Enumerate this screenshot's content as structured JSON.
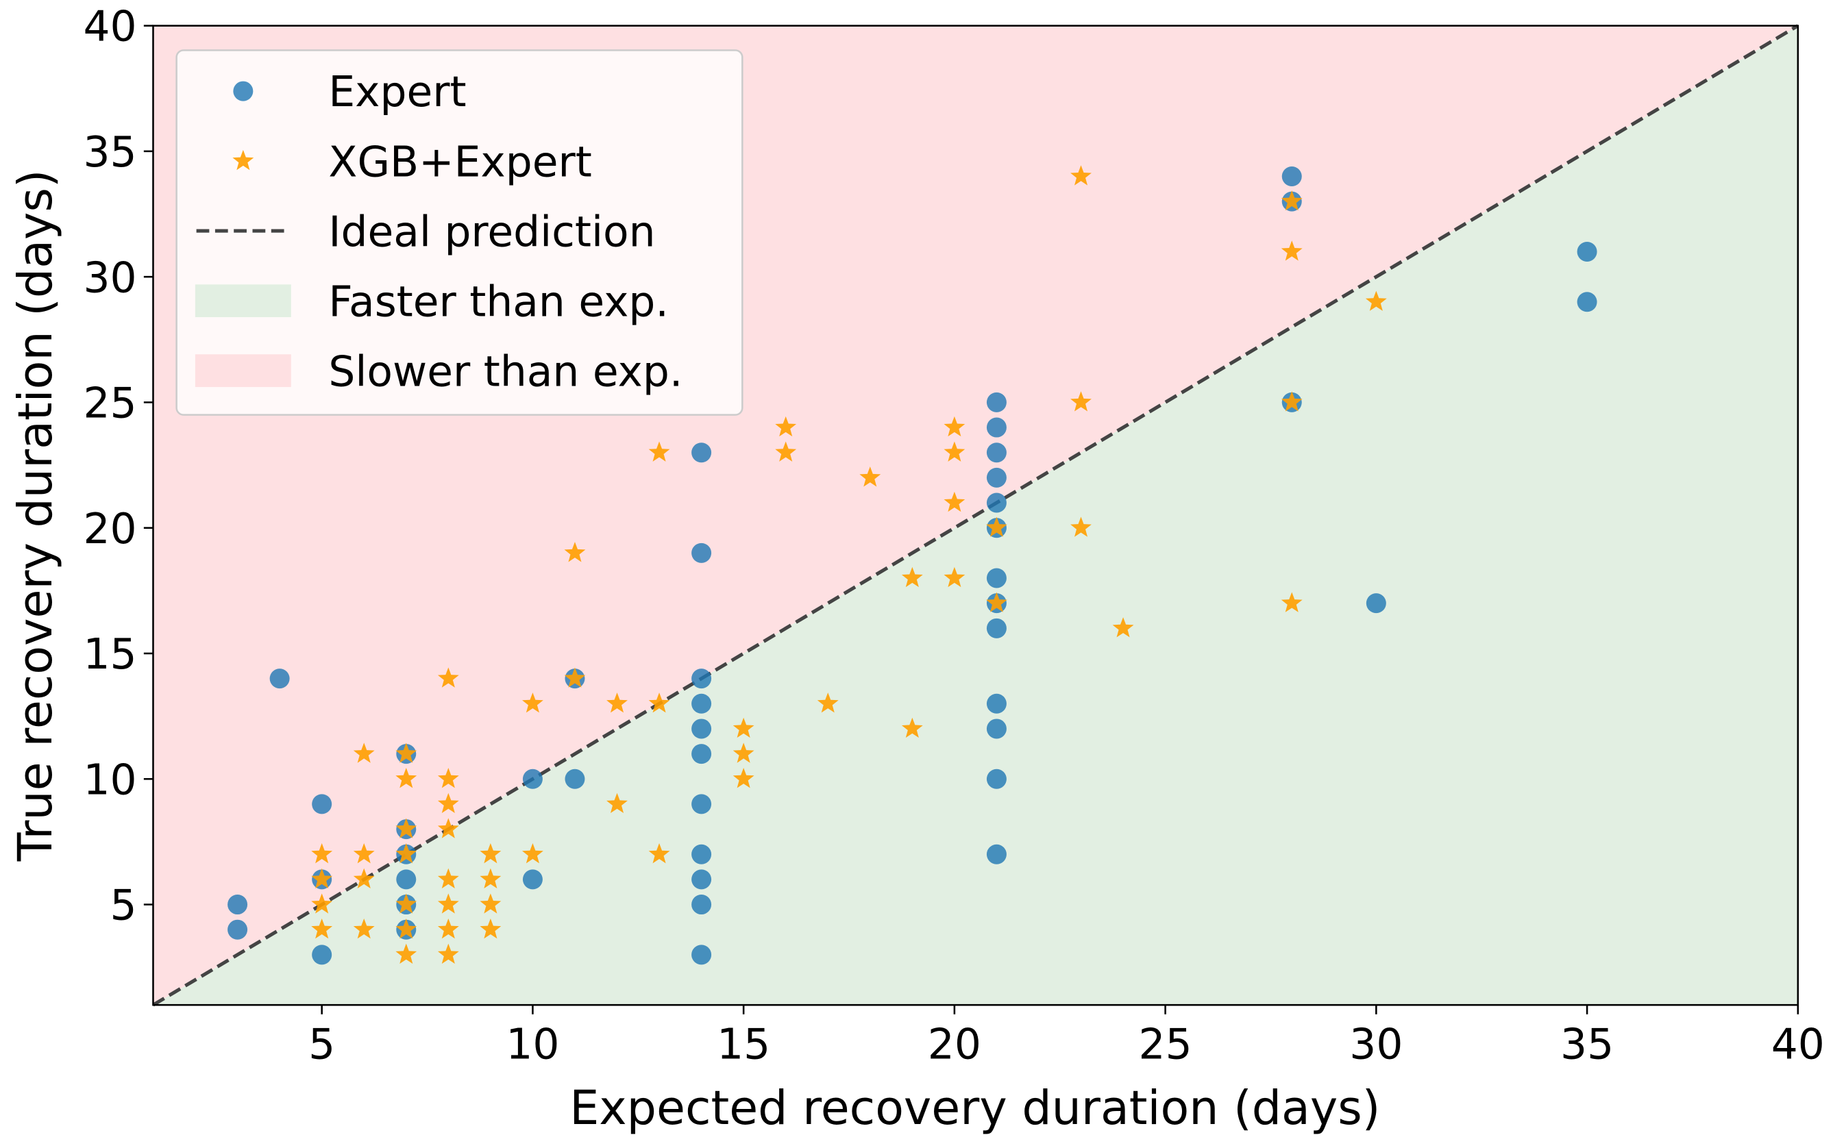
{
  "chart_data": {
    "type": "scatter",
    "xlabel": "Expected recovery duration (days)",
    "ylabel": "True recovery duration (days)",
    "xlim": [
      1,
      40
    ],
    "ylim": [
      1,
      40
    ],
    "xticks": [
      5,
      10,
      15,
      20,
      25,
      30,
      35,
      40
    ],
    "yticks": [
      5,
      10,
      15,
      20,
      25,
      30,
      35,
      40
    ],
    "legend": "upper left",
    "regions": [
      {
        "name": "Faster than exp.",
        "color": "#e2efe2",
        "side": "below"
      },
      {
        "name": "Slower than exp.",
        "color": "#fee0e2",
        "side": "above"
      }
    ],
    "line": {
      "name": "Ideal prediction",
      "color": "#444444",
      "style": "dashed"
    },
    "series": [
      {
        "name": "Expert",
        "color": "#1f77b4",
        "marker": "circle",
        "x": [
          3,
          3,
          4,
          5,
          5,
          5,
          7,
          7,
          7,
          7,
          7,
          7,
          10,
          10,
          11,
          11,
          14,
          14,
          14,
          14,
          14,
          14,
          14,
          14,
          14,
          14,
          14,
          21,
          21,
          21,
          21,
          21,
          21,
          21,
          21,
          21,
          21,
          21,
          21,
          21,
          28,
          28,
          28,
          30,
          35,
          35
        ],
        "y": [
          5,
          4,
          14,
          9,
          6,
          3,
          11,
          8,
          7,
          6,
          5,
          4,
          10,
          6,
          14,
          10,
          23,
          19,
          14,
          13,
          12,
          11,
          9,
          7,
          6,
          5,
          3,
          25,
          24,
          23,
          22,
          21,
          20,
          18,
          17,
          16,
          13,
          12,
          10,
          7,
          34,
          33,
          25,
          17,
          31,
          29
        ]
      },
      {
        "name": "XGB+Expert",
        "color": "#ff9f00",
        "marker": "star",
        "x": [
          5,
          5,
          5,
          5,
          6,
          6,
          6,
          6,
          7,
          7,
          7,
          7,
          7,
          7,
          7,
          8,
          8,
          8,
          8,
          8,
          8,
          8,
          8,
          9,
          9,
          9,
          9,
          10,
          10,
          11,
          11,
          12,
          12,
          13,
          13,
          13,
          15,
          15,
          15,
          16,
          16,
          17,
          18,
          19,
          19,
          20,
          20,
          20,
          20,
          21,
          21,
          23,
          23,
          23,
          24,
          28,
          28,
          28,
          28,
          30
        ],
        "y": [
          7,
          6,
          5,
          4,
          11,
          7,
          6,
          4,
          11,
          10,
          8,
          7,
          5,
          4,
          3,
          14,
          10,
          9,
          8,
          6,
          5,
          4,
          3,
          7,
          6,
          5,
          4,
          13,
          7,
          19,
          14,
          13,
          9,
          23,
          13,
          7,
          12,
          11,
          10,
          24,
          23,
          13,
          22,
          18,
          12,
          24,
          23,
          21,
          18,
          20,
          17,
          34,
          25,
          20,
          16,
          33,
          31,
          25,
          17,
          29
        ]
      }
    ]
  }
}
